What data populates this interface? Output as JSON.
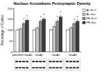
{
  "chart_data": {
    "type": "bar",
    "title": "Nucleus Accumbens Postsynaptic Density",
    "y_label": "Percentage of Control",
    "categories": [
      "pSer845-GluA1",
      "GluA1",
      "GluA2",
      "GluA3"
    ],
    "series": [
      {
        "name": "AL-H₂O",
        "color": "#ffffff",
        "values": [
          100,
          100,
          100,
          100
        ],
        "errors": [
          8,
          7,
          8,
          7
        ],
        "significance": [
          null,
          null,
          null,
          null
        ]
      },
      {
        "name": "AL-Suc",
        "color": "#c8c8c8",
        "values": [
          105,
          110,
          115,
          110
        ],
        "errors": [
          9,
          9,
          10,
          8
        ],
        "significance": [
          null,
          null,
          null,
          null
        ]
      },
      {
        "name": "FR-H₂O",
        "color": "#8c8c8c",
        "values": [
          130,
          140,
          140,
          130
        ],
        "errors": [
          10,
          10,
          11,
          9
        ],
        "significance": [
          "*",
          "*",
          "*",
          "*"
        ]
      },
      {
        "name": "FR-Suc",
        "color": "#3c3c3c",
        "values": [
          145,
          150,
          160,
          140
        ],
        "errors": [
          10,
          11,
          12,
          10
        ],
        "significance": [
          "*",
          "*",
          "*",
          "*"
        ]
      }
    ],
    "ylim": [
      0,
      200
    ],
    "yticks": [
      0,
      50,
      100,
      150,
      200
    ],
    "legend": "right"
  }
}
